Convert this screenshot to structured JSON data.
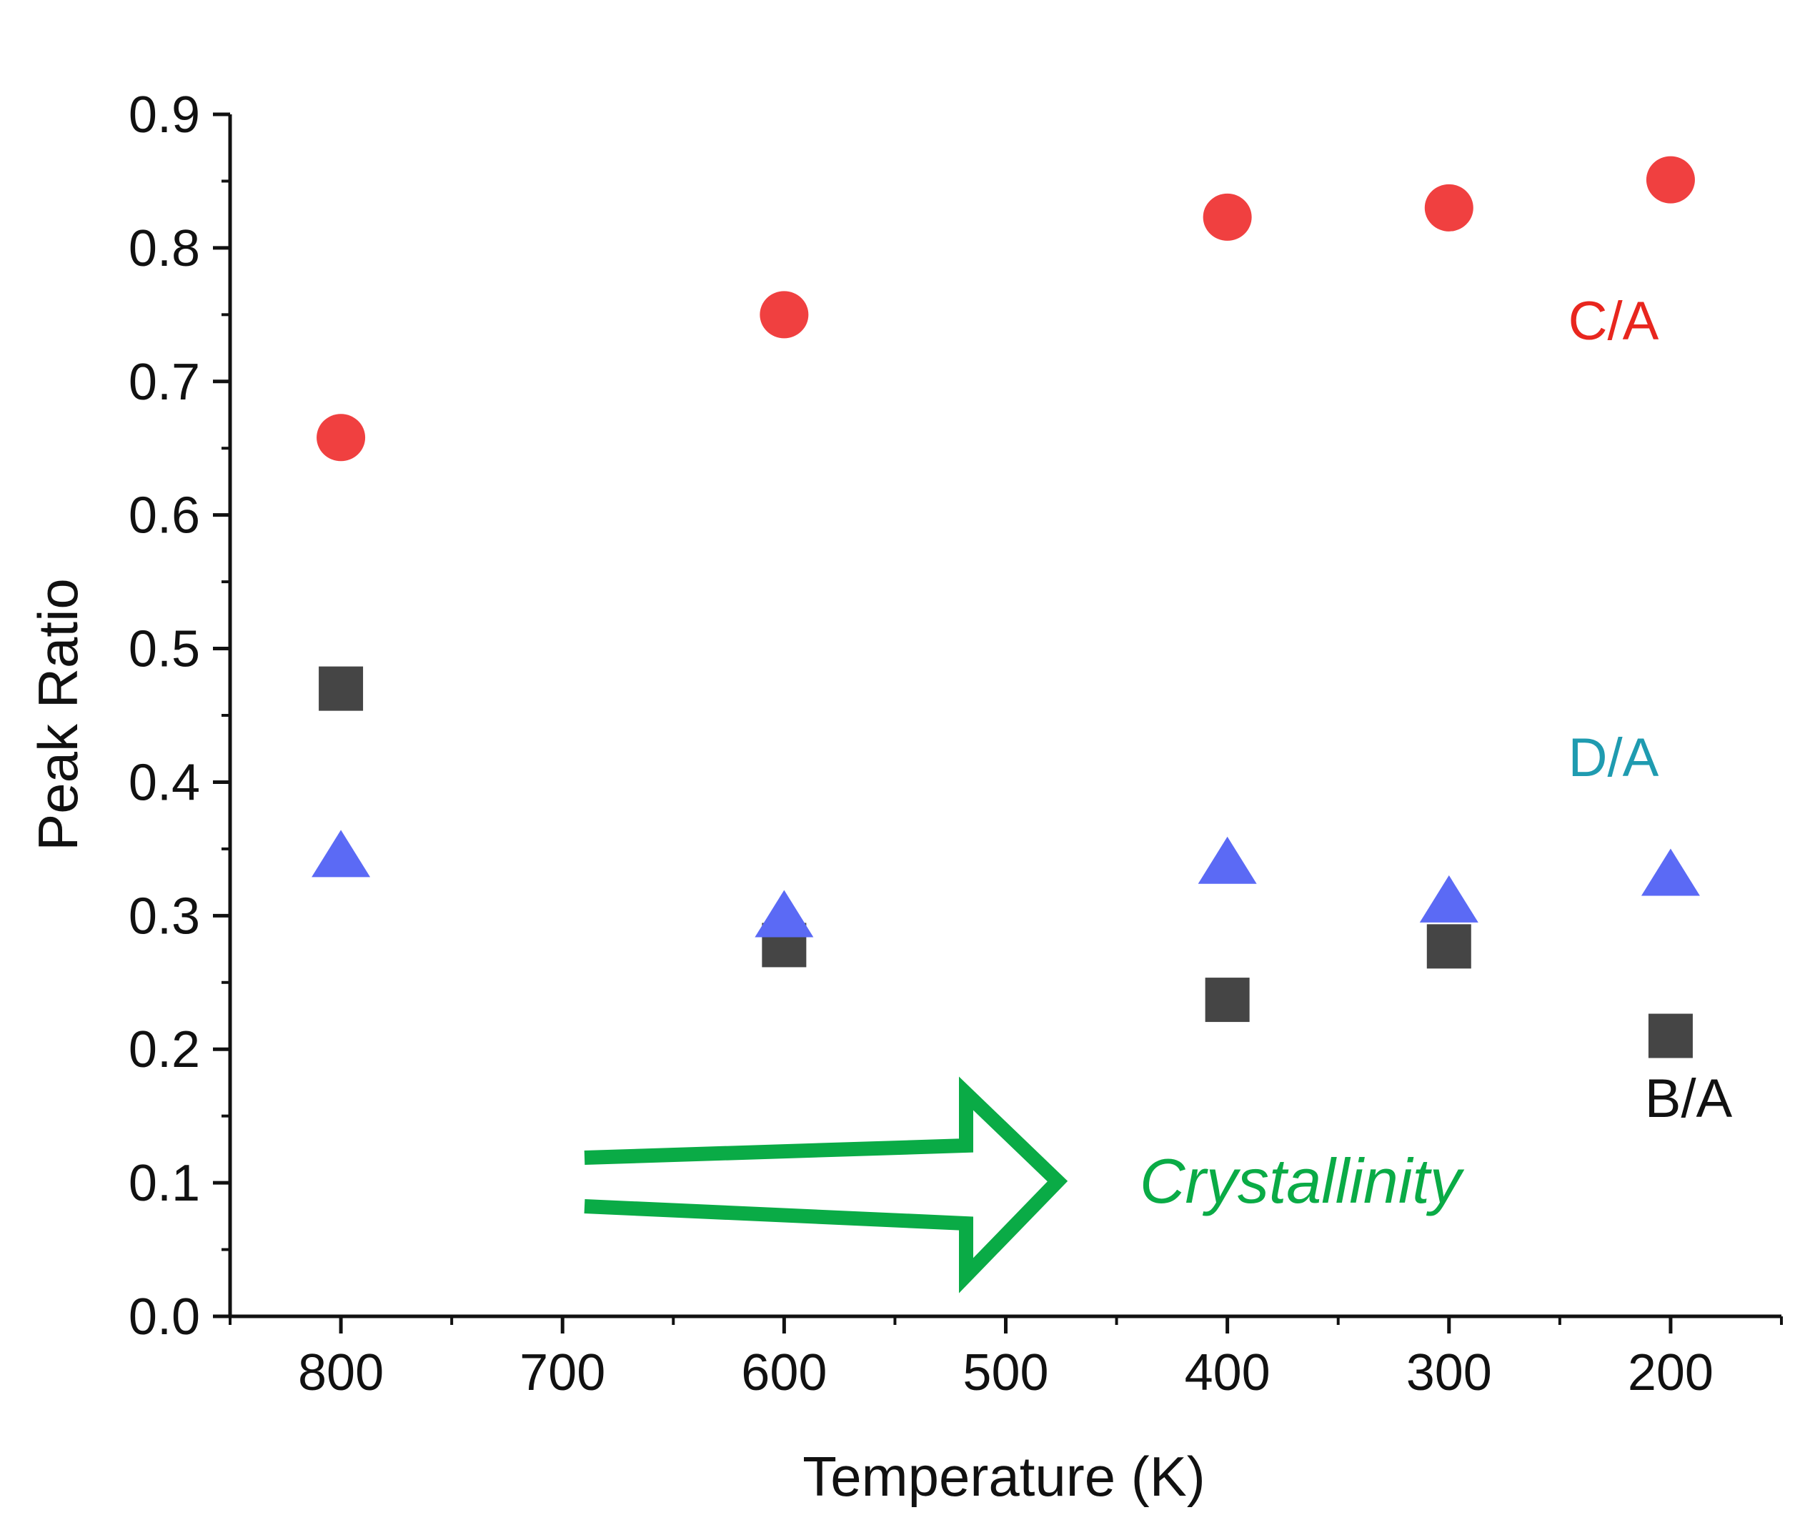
{
  "chart_data": {
    "type": "scatter",
    "title": "",
    "xlabel": "Temperature (K)",
    "ylabel": "Peak Ratio",
    "xlim": [
      850,
      150
    ],
    "ylim": [
      0,
      0.9
    ],
    "x_reversed": true,
    "grid": false,
    "x_ticks": [
      800,
      700,
      600,
      500,
      400,
      300,
      200
    ],
    "x_tick_labels": [
      "800",
      "700",
      "600",
      "500",
      "400",
      "300",
      "200"
    ],
    "y_ticks": [
      0,
      0.1,
      0.2,
      0.3,
      0.4,
      0.5,
      0.6,
      0.7,
      0.8,
      0.9
    ],
    "y_tick_labels": [
      "0.0",
      "0.1",
      "0.2",
      "0.3",
      "0.4",
      "0.5",
      "0.6",
      "0.7",
      "0.8",
      "0.9"
    ],
    "series": [
      {
        "name": "C/A",
        "marker": "circle",
        "color": "#f04040",
        "label_color": "#e8261e",
        "points": [
          {
            "x": 800,
            "y": 0.658
          },
          {
            "x": 600,
            "y": 0.75
          },
          {
            "x": 400,
            "y": 0.823
          },
          {
            "x": 300,
            "y": 0.83
          },
          {
            "x": 200,
            "y": 0.851
          }
        ]
      },
      {
        "name": "D/A",
        "marker": "triangle",
        "color": "#5b6af5",
        "label_color": "#1f9bb0",
        "points": [
          {
            "x": 800,
            "y": 0.343
          },
          {
            "x": 600,
            "y": 0.298
          },
          {
            "x": 400,
            "y": 0.338
          },
          {
            "x": 300,
            "y": 0.309
          },
          {
            "x": 200,
            "y": 0.329
          }
        ]
      },
      {
        "name": "B/A",
        "marker": "square",
        "color": "#454545",
        "label_color": "#111111",
        "points": [
          {
            "x": 800,
            "y": 0.47
          },
          {
            "x": 600,
            "y": 0.278
          },
          {
            "x": 400,
            "y": 0.237
          },
          {
            "x": 300,
            "y": 0.277
          },
          {
            "x": 200,
            "y": 0.21
          }
        ]
      }
    ],
    "annotation": {
      "text": "Crystallinity",
      "color": "#0aab46",
      "shape": "hollow-arrow-right"
    }
  }
}
